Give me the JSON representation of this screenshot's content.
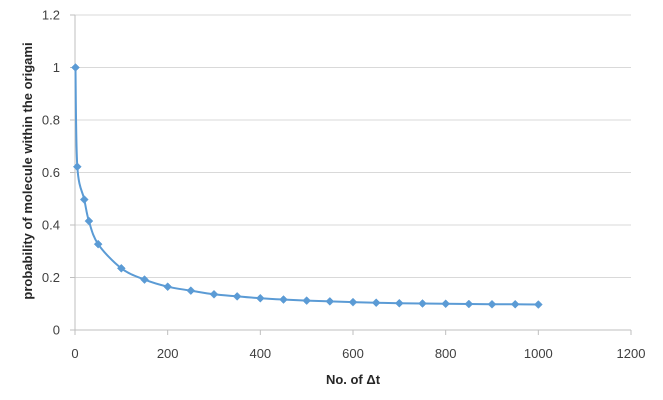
{
  "chart_data": {
    "type": "line",
    "xlabel": "No. of Δt",
    "ylabel": "probability of molecule within the origami",
    "xlim": [
      0,
      1200
    ],
    "ylim": [
      0,
      1.2
    ],
    "x_ticks": [
      0,
      200,
      400,
      600,
      800,
      1000,
      1200
    ],
    "y_ticks": [
      0,
      0.2,
      0.4,
      0.6,
      0.8,
      1,
      1.2
    ],
    "x_tick_labels": [
      "0",
      "200",
      "400",
      "600",
      "800",
      "1000",
      "1200"
    ],
    "y_tick_labels": [
      "0",
      "0.2",
      "0.4",
      "0.6",
      "0.8",
      "1",
      "1.2"
    ],
    "grid": {
      "horizontal": true,
      "vertical": false
    },
    "legend": "none",
    "series_color": "#5B9BD5",
    "gridline_color": "#D9D9D9",
    "axis_color": "#BFBFBF",
    "series": [
      {
        "x": [
          1,
          5,
          20,
          30,
          50,
          100,
          150,
          200,
          250,
          300,
          350,
          400,
          450,
          500,
          550,
          600,
          650,
          700,
          750,
          800,
          850,
          900,
          950,
          1000
        ],
        "y": [
          1.0,
          0.622,
          0.497,
          0.415,
          0.327,
          0.235,
          0.192,
          0.165,
          0.15,
          0.136,
          0.128,
          0.121,
          0.116,
          0.112,
          0.109,
          0.106,
          0.104,
          0.102,
          0.101,
          0.1,
          0.099,
          0.098,
          0.098,
          0.097
        ]
      }
    ]
  }
}
